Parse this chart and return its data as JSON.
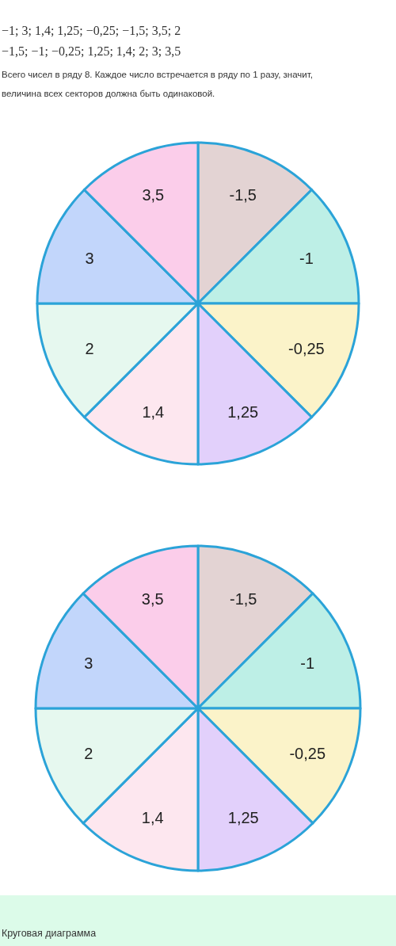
{
  "chart_data": [
    {
      "type": "pie",
      "annotations": [
        "−1; 3; 1,4; 1,25; −0,25; −1,5; 3,5; 2",
        "−1,5; −1; −0,25; 1,25; 1,4; 2; 3; 3,5",
        "Всего чисел в ряду 8. Каждое число встречается в ряду по 1 разу, значит,",
        "величина всех секторов должна быть одинаковой."
      ],
      "categories": [
        "-1,5",
        "-1",
        "-0,25",
        "1,25",
        "1,4",
        "2",
        "3",
        "3,5"
      ],
      "values": [
        12.5,
        12.5,
        12.5,
        12.5,
        12.5,
        12.5,
        12.5,
        12.5
      ],
      "colors": [
        "#e3d3d3",
        "#bdefe6",
        "#fbf3c9",
        "#e2d0fb",
        "#fde7ef",
        "#e6f8ef",
        "#c2d6fb",
        "#fbcdea"
      ]
    },
    {
      "type": "pie",
      "annotations": [
        "Круговая диаграмма"
      ],
      "categories": [
        "-1,5",
        "-1",
        "-0,25",
        "1,25",
        "1,4",
        "2",
        "3",
        "3,5"
      ],
      "values": [
        12.5,
        12.5,
        12.5,
        12.5,
        12.5,
        12.5,
        12.5,
        12.5
      ],
      "colors": [
        "#e3d3d3",
        "#bdefe6",
        "#fbf3c9",
        "#e2d0fb",
        "#fde7ef",
        "#e6f8ef",
        "#c2d6fb",
        "#fbcdea"
      ]
    }
  ]
}
